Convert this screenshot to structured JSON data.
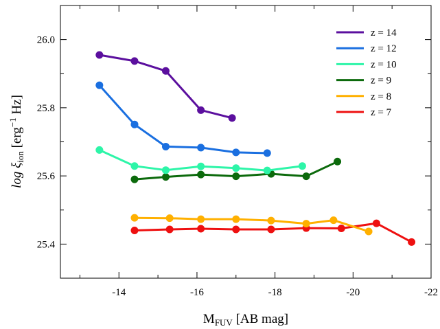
{
  "chart_data": {
    "type": "line",
    "title": "",
    "xlabel": {
      "main": "M",
      "sub": "FUV",
      "rest": " [AB mag]"
    },
    "ylabel": {
      "main": "log ξ",
      "sub": "ion",
      "rest": " [erg",
      "sup": "−1",
      "tail": " Hz]"
    },
    "xlim": [
      -12.5,
      -22
    ],
    "ylim": [
      25.3,
      26.1
    ],
    "x_ticks": [
      -14,
      -16,
      -18,
      -20,
      -22
    ],
    "x_tick_labels": [
      "-14",
      "-16",
      "-18",
      "-20",
      "-22"
    ],
    "y_ticks": [
      25.4,
      25.6,
      25.8,
      26.0
    ],
    "y_tick_labels": [
      "25.4",
      "25.6",
      "25.8",
      "26.0"
    ],
    "grid": false,
    "legend_position": "top-right",
    "series": [
      {
        "name": "z = 14",
        "color": "#5b0f9e",
        "x": [
          -13.5,
          -14.4,
          -15.2,
          -16.1,
          -16.9
        ],
        "y": [
          25.955,
          25.937,
          25.908,
          25.793,
          25.77
        ]
      },
      {
        "name": "z = 12",
        "color": "#1a6fe0",
        "x": [
          -13.5,
          -14.4,
          -15.2,
          -16.1,
          -17.0,
          -17.8
        ],
        "y": [
          25.866,
          25.751,
          25.686,
          25.683,
          25.669,
          25.667
        ]
      },
      {
        "name": "z = 10",
        "color": "#2df5a8",
        "x": [
          -13.5,
          -14.4,
          -15.2,
          -16.1,
          -17.0,
          -17.8,
          -18.7
        ],
        "y": [
          25.676,
          25.629,
          25.617,
          25.628,
          25.623,
          25.616,
          25.629
        ]
      },
      {
        "name": "z = 9",
        "color": "#0c6a0c",
        "x": [
          -14.4,
          -15.2,
          -16.1,
          -17.0,
          -17.9,
          -18.8,
          -19.6
        ],
        "y": [
          25.59,
          25.597,
          25.604,
          25.599,
          25.606,
          25.599,
          25.642
        ]
      },
      {
        "name": "z = 8",
        "color": "#ffb000",
        "x": [
          -14.4,
          -15.3,
          -16.1,
          -17.0,
          -17.9,
          -18.8,
          -19.5,
          -20.4
        ],
        "y": [
          25.477,
          25.476,
          25.473,
          25.473,
          25.469,
          25.46,
          25.47,
          25.437
        ]
      },
      {
        "name": "z = 7",
        "color": "#ee1010",
        "x": [
          -14.4,
          -15.3,
          -16.1,
          -17.0,
          -17.9,
          -18.8,
          -19.7,
          -20.6,
          -21.5
        ],
        "y": [
          25.44,
          25.443,
          25.445,
          25.443,
          25.443,
          25.447,
          25.446,
          25.461,
          25.406
        ]
      }
    ]
  }
}
